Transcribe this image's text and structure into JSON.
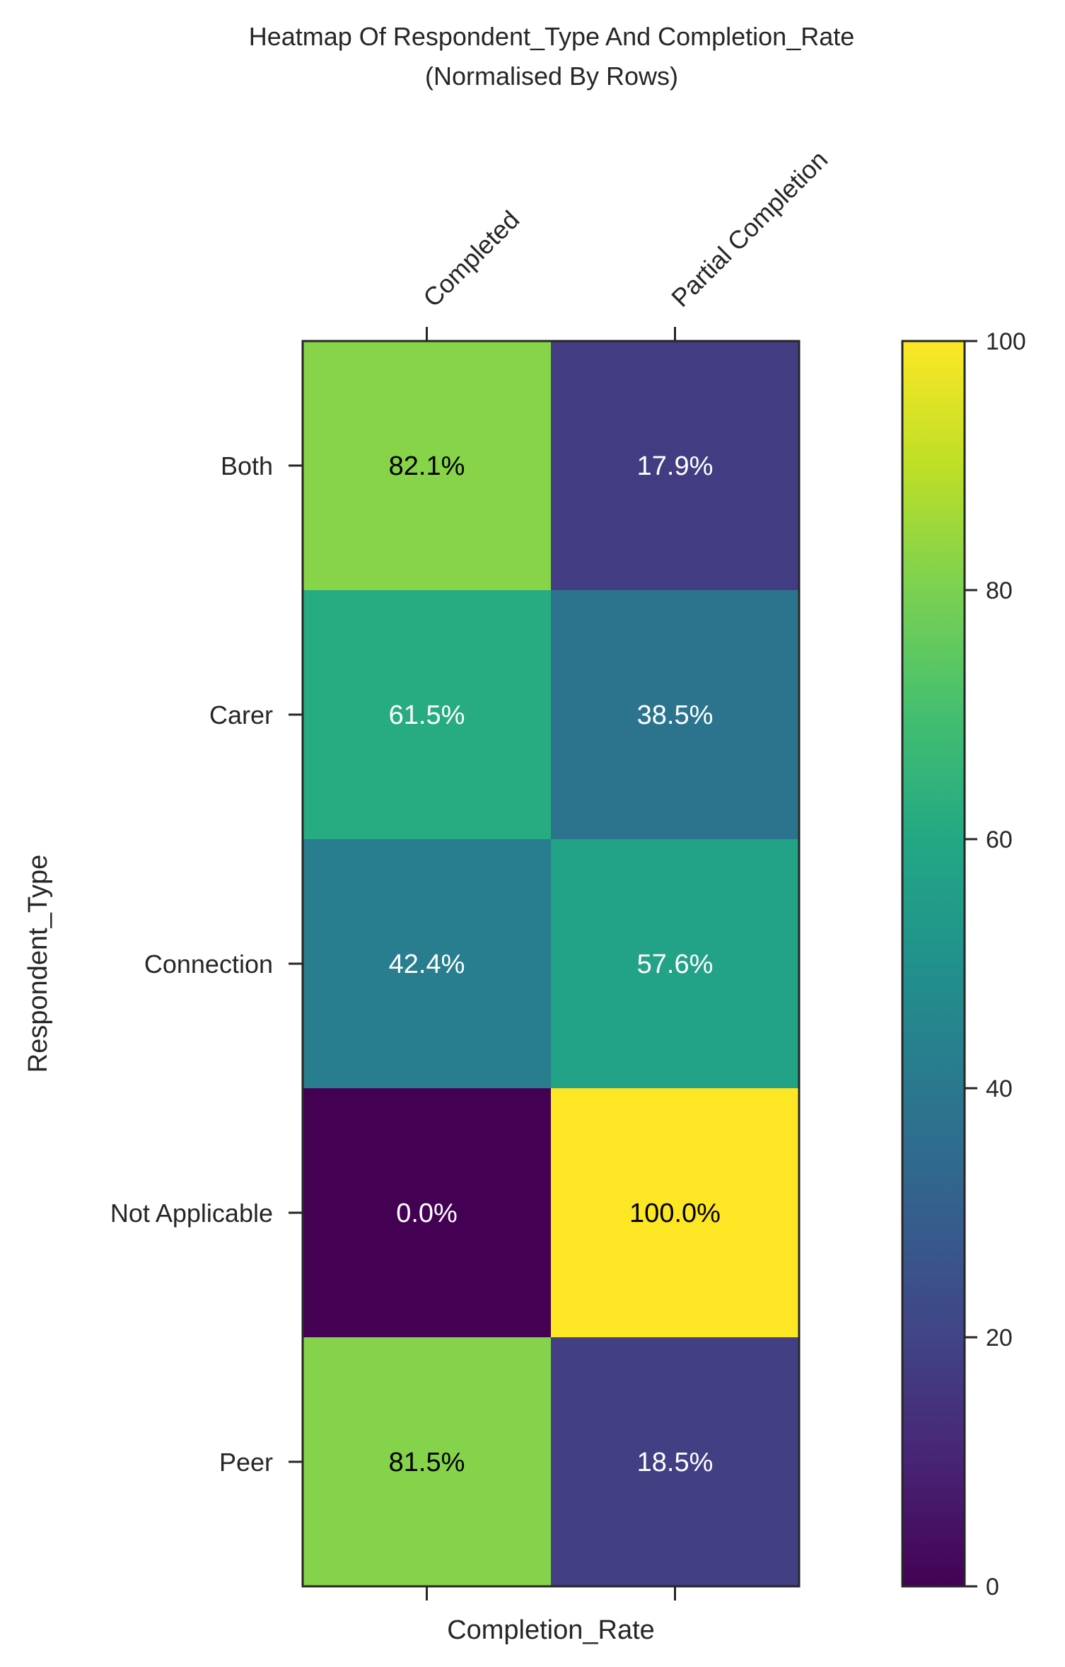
{
  "chart_data": {
    "type": "heatmap",
    "title": "Heatmap Of Respondent_Type And Completion_Rate",
    "subtitle": "(Normalised By Rows)",
    "xlabel": "Completion_Rate",
    "ylabel": "Respondent_Type",
    "columns": [
      "Completed",
      "Partial Completion"
    ],
    "rows": [
      "Both",
      "Carer",
      "Connection",
      "Not Applicable",
      "Peer"
    ],
    "values": [
      [
        82.1,
        17.9
      ],
      [
        61.5,
        38.5
      ],
      [
        42.4,
        57.6
      ],
      [
        0.0,
        100.0
      ],
      [
        81.5,
        18.5
      ]
    ],
    "cell_labels": [
      [
        "82.1%",
        "17.9%"
      ],
      [
        "61.5%",
        "38.5%"
      ],
      [
        "42.4%",
        "57.6%"
      ],
      [
        "0.0%",
        "100.0%"
      ],
      [
        "81.5%",
        "18.5%"
      ]
    ],
    "colormap": "viridis",
    "colorbar": {
      "range": [
        0,
        100
      ],
      "ticks": [
        0,
        20,
        40,
        60,
        80,
        100
      ],
      "tick_labels": [
        "0",
        "20",
        "40",
        "60",
        "80",
        "100"
      ]
    },
    "grid": false,
    "x_ticks_position": "top"
  }
}
